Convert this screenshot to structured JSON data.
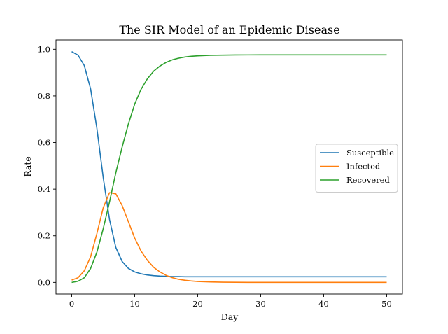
{
  "chart_data": {
    "type": "line",
    "title": "The SIR Model of an Epidemic Disease",
    "xlabel": "Day",
    "ylabel": "Rate",
    "xlim": [
      -2.5,
      52.5
    ],
    "ylim": [
      -0.05,
      1.04
    ],
    "xticks": [
      0,
      10,
      20,
      30,
      40,
      50
    ],
    "yticks": [
      0.0,
      0.2,
      0.4,
      0.6,
      0.8,
      1.0
    ],
    "grid": false,
    "legend_position": "center-right",
    "x": [
      0,
      1,
      2,
      3,
      4,
      5,
      6,
      7,
      8,
      9,
      10,
      11,
      12,
      13,
      14,
      15,
      16,
      17,
      18,
      19,
      20,
      22,
      24,
      26,
      28,
      30,
      35,
      40,
      45,
      50
    ],
    "series": [
      {
        "name": "Susceptible",
        "color": "#1f77b4",
        "values": [
          0.99,
          0.975,
          0.93,
          0.83,
          0.66,
          0.45,
          0.27,
          0.15,
          0.09,
          0.06,
          0.045,
          0.037,
          0.032,
          0.029,
          0.027,
          0.026,
          0.025,
          0.025,
          0.024,
          0.024,
          0.024,
          0.024,
          0.024,
          0.024,
          0.024,
          0.024,
          0.024,
          0.024,
          0.024,
          0.024
        ]
      },
      {
        "name": "Infected",
        "color": "#ff7f0e",
        "values": [
          0.01,
          0.02,
          0.05,
          0.11,
          0.21,
          0.32,
          0.385,
          0.38,
          0.33,
          0.26,
          0.19,
          0.135,
          0.095,
          0.065,
          0.045,
          0.03,
          0.02,
          0.013,
          0.009,
          0.006,
          0.004,
          0.002,
          0.001,
          0.0005,
          0.0002,
          0.0001,
          0.0,
          0.0,
          0.0,
          0.0
        ]
      },
      {
        "name": "Recovered",
        "color": "#2ca02c",
        "values": [
          0.0,
          0.005,
          0.02,
          0.06,
          0.13,
          0.23,
          0.345,
          0.47,
          0.58,
          0.68,
          0.765,
          0.828,
          0.873,
          0.906,
          0.928,
          0.944,
          0.955,
          0.962,
          0.967,
          0.97,
          0.972,
          0.974,
          0.975,
          0.9755,
          0.9758,
          0.976,
          0.976,
          0.976,
          0.976,
          0.976
        ]
      }
    ]
  }
}
